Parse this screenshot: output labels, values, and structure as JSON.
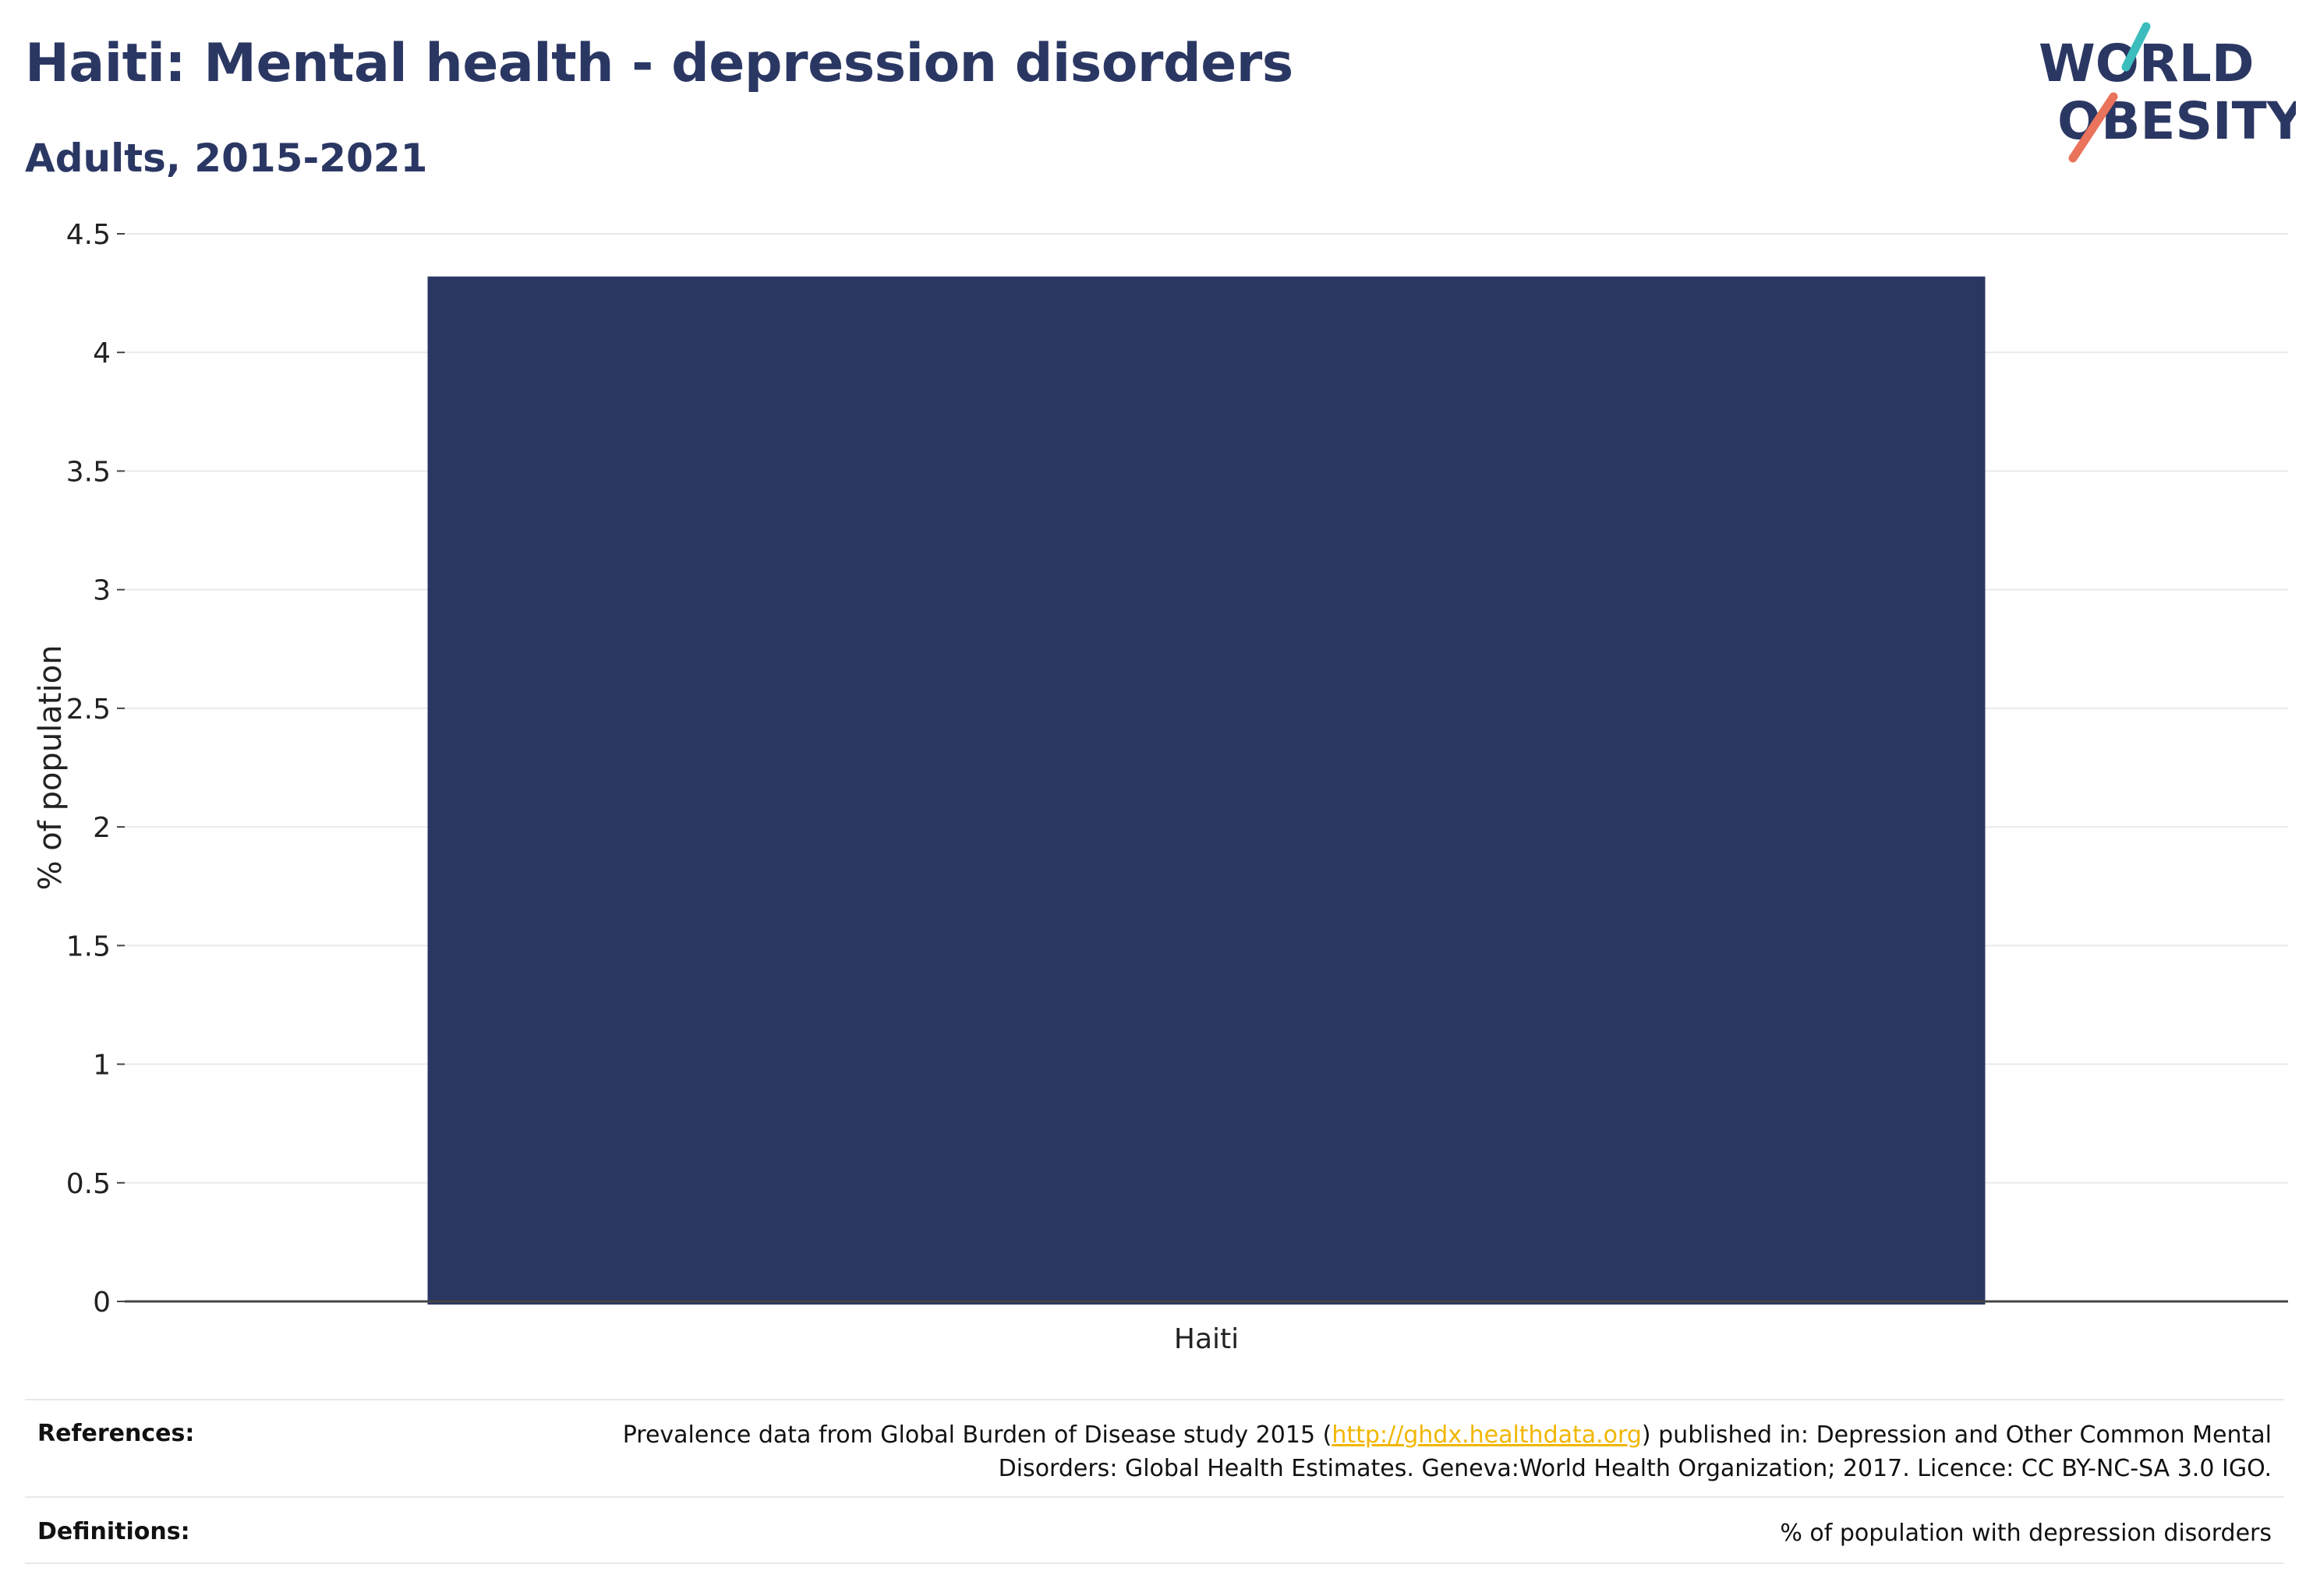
{
  "header": {
    "title": "Haiti: Mental health - depression disorders",
    "subtitle": "Adults, 2015-2021"
  },
  "logo": {
    "line1": "WORLD",
    "line2": "OBESITY",
    "slash_top_color": "#3bbdbd",
    "slash_bottom_color": "#e9735b"
  },
  "chart_data": {
    "type": "bar",
    "categories": [
      "Haiti"
    ],
    "values": [
      4.32
    ],
    "ylabel": "% of population",
    "ylim": [
      0,
      4.5
    ],
    "yticks": [
      "0",
      "0.5",
      "1",
      "1.5",
      "2",
      "2.5",
      "3",
      "3.5",
      "4",
      "4.5"
    ],
    "grid": true,
    "bar_color": "#2b3763"
  },
  "footer": {
    "references_label": "References:",
    "references_text_before": "Prevalence data from Global Burden of Disease study 2015 (",
    "references_link": "http://ghdx.healthdata.org",
    "references_text_after": ") published in: Depression and Other Common Mental Disorders: Global Health Estimates. Geneva:World Health Organization; 2017. Licence: CC BY-NC-SA 3.0 IGO.",
    "definitions_label": "Definitions:",
    "definitions_text": "% of population with depression disorders"
  }
}
